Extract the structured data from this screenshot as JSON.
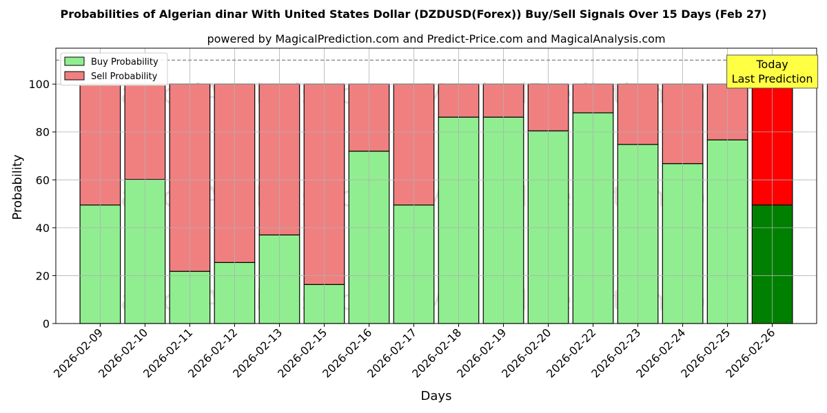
{
  "chart_data": {
    "type": "bar",
    "stacked": true,
    "title": "Probabilities of Algerian dinar With United States Dollar (DZDUSD(Forex)) Buy/Sell Signals Over 15 Days (Feb 27)",
    "subtitle": "powered by MagicalPrediction.com and Predict-Price.com and MagicalAnalysis.com",
    "xlabel": "Days",
    "ylabel": "Probability",
    "ylim": [
      0,
      115
    ],
    "yticks": [
      0,
      20,
      40,
      60,
      80,
      100
    ],
    "reference_line": 110,
    "grid": true,
    "legend_position": "top-left",
    "categories": [
      "2026-02-09",
      "2026-02-10",
      "2026-02-11",
      "2026-02-12",
      "2026-02-13",
      "2026-02-15",
      "2026-02-16",
      "2026-02-17",
      "2026-02-18",
      "2026-02-19",
      "2026-02-20",
      "2026-02-22",
      "2026-02-23",
      "2026-02-24",
      "2026-02-25",
      "2026-02-26"
    ],
    "series": [
      {
        "name": "Buy Probability",
        "color": "#90ee90",
        "today_color": "#008000",
        "values": [
          49.5,
          60.2,
          21.8,
          25.5,
          37.0,
          16.3,
          72.0,
          49.5,
          86.2,
          86.2,
          80.5,
          88.0,
          74.8,
          66.8,
          76.7,
          49.5
        ]
      },
      {
        "name": "Sell Probability",
        "color": "#f08080",
        "today_color": "#ff0000",
        "values": [
          50.5,
          39.8,
          78.2,
          74.5,
          63.0,
          83.7,
          28.0,
          50.5,
          13.8,
          13.8,
          19.5,
          12.0,
          25.2,
          33.2,
          23.3,
          50.5
        ]
      }
    ],
    "annotation": {
      "line1": "Today",
      "line2": "Last Prediction",
      "color": "#ffff44"
    },
    "watermarks": [
      "MagicalAnalysis.com",
      "MagicalPrediction.com"
    ]
  }
}
